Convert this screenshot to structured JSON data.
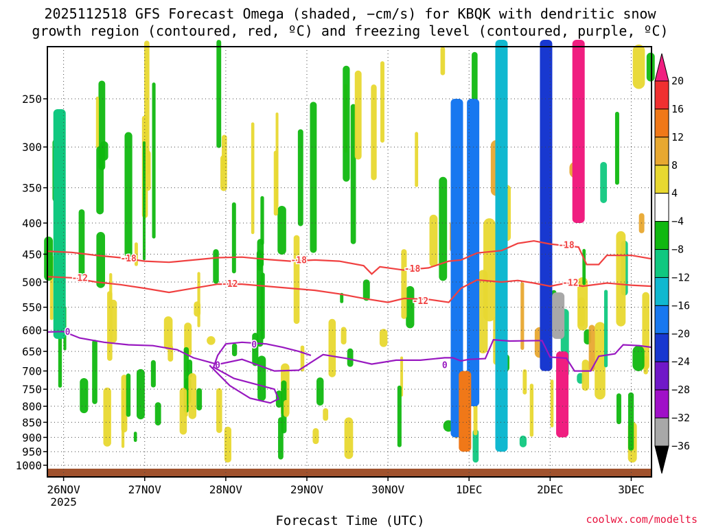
{
  "title_line1": "2025112518 GFS Forecast Omega (shaded, −cm/s) for KBQK with dendritic snow",
  "title_line2": "growth region (contoured, red, ºC) and freezing level (contoured, purple, ºC)",
  "credit": "coolwx.com/modelts",
  "chart_data": {
    "type": "heatmap",
    "title": "2025112518 GFS Forecast Omega (shaded, −cm/s) for KBQK",
    "xlabel": "Forecast Time (UTC)",
    "ylabel": "",
    "x_ticks": [
      {
        "label": "26NOV",
        "sub": "2025",
        "t": 0.2
      },
      {
        "label": "27NOV",
        "t": 1.2
      },
      {
        "label": "28NOV",
        "t": 2.2
      },
      {
        "label": "29NOV",
        "t": 3.2
      },
      {
        "label": "30NOV",
        "t": 4.2
      },
      {
        "label": "1DEC",
        "t": 5.2
      },
      {
        "label": "2DEC",
        "t": 6.2
      },
      {
        "label": "3DEC",
        "t": 7.2
      }
    ],
    "xlim": [
      0,
      7.45
    ],
    "y_ticks": [
      250,
      300,
      350,
      400,
      450,
      500,
      550,
      600,
      650,
      700,
      750,
      800,
      850,
      900,
      950,
      1000
    ],
    "ylim_hpa": [
      200,
      1000
    ],
    "colorbar": {
      "labels": [
        "20",
        "16",
        "12",
        "8",
        "4",
        "−4",
        "−8",
        "−12",
        "−16",
        "−20",
        "−24",
        "−28",
        "−32",
        "−36"
      ],
      "colors": [
        "#f01e80",
        "#f03030",
        "#f07818",
        "#e8a830",
        "#e8d830",
        "#ffffff",
        "#10b810",
        "#10c880",
        "#10b8d0",
        "#1878f0",
        "#1838d0",
        "#7018c8",
        "#a010c8",
        "#a8a8a8",
        "#000000"
      ]
    },
    "contours": [
      {
        "level": "-18",
        "color": "#f04040",
        "points": [
          [
            0,
            445
          ],
          [
            0.3,
            447
          ],
          [
            0.6,
            452
          ],
          [
            0.9,
            456
          ],
          [
            1.2,
            462
          ],
          [
            1.5,
            464
          ],
          [
            1.8,
            460
          ],
          [
            2.1,
            456
          ],
          [
            2.4,
            455
          ],
          [
            2.7,
            459
          ],
          [
            3.0,
            462
          ],
          [
            3.3,
            460
          ],
          [
            3.6,
            462
          ],
          [
            3.9,
            470
          ],
          [
            4.0,
            485
          ],
          [
            4.1,
            472
          ],
          [
            4.4,
            478
          ],
          [
            4.7,
            474
          ],
          [
            4.95,
            462
          ],
          [
            5.1,
            460
          ],
          [
            5.3,
            448
          ],
          [
            5.6,
            444
          ],
          [
            5.8,
            432
          ],
          [
            6.0,
            428
          ],
          [
            6.2,
            433
          ],
          [
            6.4,
            436
          ],
          [
            6.55,
            438
          ],
          [
            6.65,
            468
          ],
          [
            6.8,
            468
          ],
          [
            6.9,
            452
          ],
          [
            7.2,
            452
          ],
          [
            7.45,
            458
          ]
        ],
        "label_at": [
          [
            1.0,
            458
          ],
          [
            3.1,
            461
          ],
          [
            4.5,
            476
          ],
          [
            6.4,
            435
          ]
        ]
      },
      {
        "level": "-12",
        "color": "#f04040",
        "points": [
          [
            0,
            490
          ],
          [
            0.3,
            492
          ],
          [
            0.6,
            500
          ],
          [
            0.9,
            505
          ],
          [
            1.2,
            512
          ],
          [
            1.5,
            520
          ],
          [
            1.8,
            512
          ],
          [
            2.1,
            504
          ],
          [
            2.4,
            504
          ],
          [
            2.7,
            508
          ],
          [
            3.0,
            512
          ],
          [
            3.3,
            516
          ],
          [
            3.6,
            523
          ],
          [
            3.9,
            532
          ],
          [
            4.2,
            540
          ],
          [
            4.4,
            532
          ],
          [
            4.7,
            534
          ],
          [
            4.95,
            540
          ],
          [
            5.1,
            512
          ],
          [
            5.3,
            496
          ],
          [
            5.6,
            500
          ],
          [
            5.8,
            497
          ],
          [
            6.0,
            502
          ],
          [
            6.2,
            508
          ],
          [
            6.4,
            502
          ],
          [
            6.6,
            508
          ],
          [
            6.9,
            502
          ],
          [
            7.2,
            506
          ],
          [
            7.45,
            508
          ]
        ],
        "label_at": [
          [
            0.4,
            493
          ],
          [
            2.25,
            504
          ],
          [
            4.6,
            538
          ],
          [
            6.45,
            502
          ]
        ]
      },
      {
        "level": "0",
        "color": "#9818c0",
        "points": [
          [
            0,
            604
          ],
          [
            0.2,
            603
          ],
          [
            0.4,
            618
          ],
          [
            0.7,
            628
          ],
          [
            1.0,
            634
          ],
          [
            1.3,
            636
          ],
          [
            1.6,
            646
          ],
          [
            1.8,
            666
          ],
          [
            2.1,
            683
          ],
          [
            2.4,
            670
          ],
          [
            2.8,
            700
          ],
          [
            3.1,
            698
          ],
          [
            3.4,
            658
          ],
          [
            3.7,
            668
          ],
          [
            4.0,
            682
          ],
          [
            4.3,
            672
          ],
          [
            4.6,
            672
          ],
          [
            4.9,
            666
          ],
          [
            5.0,
            666
          ],
          [
            5.1,
            674
          ],
          [
            5.2,
            670
          ],
          [
            5.4,
            668
          ],
          [
            5.5,
            622
          ],
          [
            5.7,
            625
          ],
          [
            6.1,
            624
          ],
          [
            6.2,
            664
          ],
          [
            6.4,
            667
          ],
          [
            6.5,
            700
          ],
          [
            6.7,
            700
          ],
          [
            6.8,
            662
          ],
          [
            7.0,
            656
          ],
          [
            7.1,
            634
          ],
          [
            7.3,
            636
          ],
          [
            7.45,
            640
          ]
        ],
        "label_at": [
          [
            0.25,
            604
          ],
          [
            2.1,
            685
          ],
          [
            4.9,
            685
          ]
        ]
      },
      {
        "level": "0",
        "color": "#9818c0",
        "points": [
          [
            2.0,
            685
          ],
          [
            2.25,
            740
          ],
          [
            2.5,
            776
          ],
          [
            2.75,
            790
          ],
          [
            2.85,
            778
          ],
          [
            2.8,
            750
          ],
          [
            2.3,
            720
          ],
          [
            2.05,
            690
          ],
          [
            2.1,
            660
          ],
          [
            2.2,
            632
          ],
          [
            2.4,
            628
          ],
          [
            2.7,
            632
          ],
          [
            2.9,
            640
          ],
          [
            3.1,
            650
          ],
          [
            3.25,
            660
          ]
        ],
        "label_at": [
          [
            2.55,
            634
          ]
        ]
      }
    ],
    "shaded_regions_omega": [
      {
        "t": 0.15,
        "p1": 260,
        "p2": 620,
        "value": -10
      },
      {
        "t": 5.05,
        "p1": 250,
        "p2": 900,
        "value": -18
      },
      {
        "t": 5.25,
        "p1": 250,
        "p2": 800,
        "value": -20
      },
      {
        "t": 5.6,
        "p1": 200,
        "p2": 950,
        "value": -16
      },
      {
        "t": 6.15,
        "p1": 200,
        "p2": 700,
        "value": -22
      },
      {
        "t": 6.3,
        "p1": 520,
        "p2": 620,
        "value": -36
      },
      {
        "t": 6.35,
        "p1": 650,
        "p2": 900,
        "value": 20
      },
      {
        "t": 6.55,
        "p1": 200,
        "p2": 400,
        "value": 20
      },
      {
        "t": 5.15,
        "p1": 700,
        "p2": 950,
        "value": 12
      }
    ]
  }
}
